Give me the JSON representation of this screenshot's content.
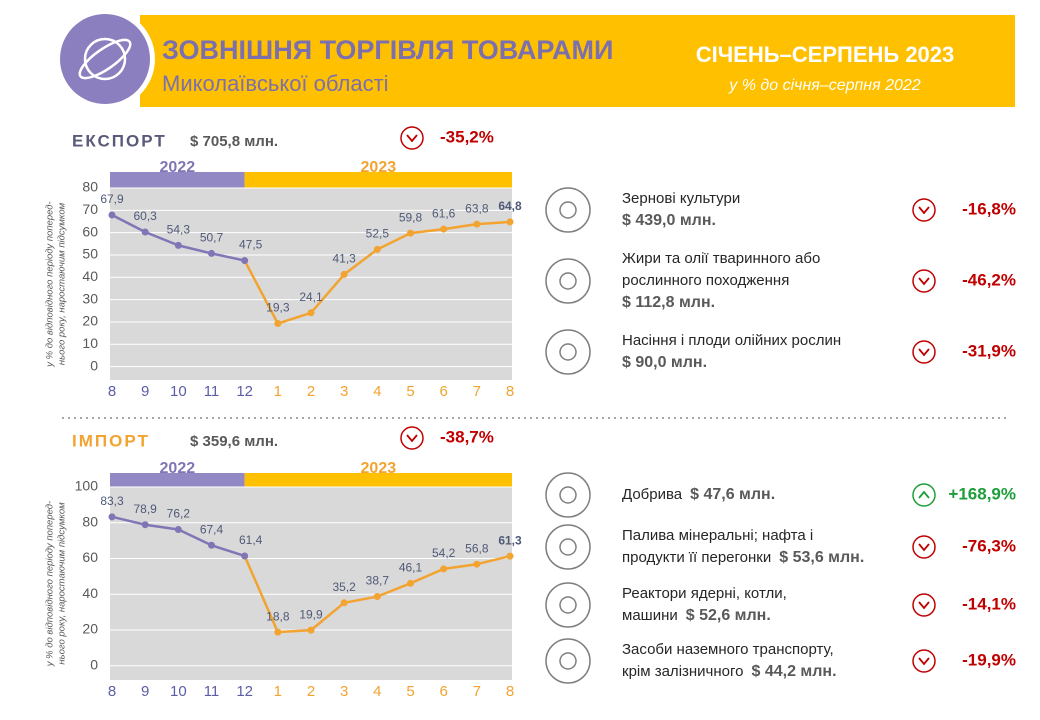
{
  "header": {
    "title": "ЗОВНІШНЯ ТОРГІВЛЯ ТОВАРАМИ",
    "subtitle": "Миколаївської області",
    "period": "СІЧЕНЬ–СЕРПЕНЬ 2023",
    "period_note": "у % до січня–серпня 2022"
  },
  "chart_data": [
    {
      "type": "line",
      "title": "ЕКСПОРТ",
      "title_color": "#595979",
      "total": "$ 705,8 млн.",
      "change": "-35,2%",
      "trend": "down",
      "categories": [
        "8",
        "9",
        "10",
        "11",
        "12",
        "1",
        "2",
        "3",
        "4",
        "5",
        "6",
        "7",
        "8"
      ],
      "values": [
        67.9,
        60.3,
        54.3,
        50.7,
        47.5,
        19.3,
        24.1,
        41.3,
        52.5,
        59.8,
        61.6,
        63.8,
        64.8
      ],
      "value_labels": [
        "67,9",
        "60,3",
        "54,3",
        "50,7",
        "47,5",
        "19,3",
        "24,1",
        "41,3",
        "52,5",
        "59,8",
        "61,6",
        "63,8",
        "64,8"
      ],
      "periods": [
        {
          "label": "2022",
          "count": 5,
          "color": "#8175b6",
          "band_color": "#9188c4"
        },
        {
          "label": "2023",
          "count": 8,
          "color": "#f2a330",
          "band_color": "#ffc000"
        }
      ],
      "ylim": [
        -6,
        80
      ],
      "yticks": [
        0,
        10,
        20,
        30,
        40,
        50,
        60,
        70,
        80
      ],
      "grid": true,
      "ylabel": [
        "у % до відповідного періоду поперед-",
        "нього року, наростаючим підсумком"
      ]
    },
    {
      "type": "line",
      "title": "ІМПОРТ",
      "title_color": "#f2a330",
      "total": "$ 359,6 млн.",
      "change": "-38,7%",
      "trend": "down",
      "categories": [
        "8",
        "9",
        "10",
        "11",
        "12",
        "1",
        "2",
        "3",
        "4",
        "5",
        "6",
        "7",
        "8"
      ],
      "values": [
        83.3,
        78.9,
        76.2,
        67.4,
        61.4,
        18.8,
        19.9,
        35.2,
        38.7,
        46.1,
        54.2,
        56.8,
        61.3
      ],
      "value_labels": [
        "83,3",
        "78,9",
        "76,2",
        "67,4",
        "61,4",
        "18,8",
        "19,9",
        "35,2",
        "38,7",
        "46,1",
        "54,2",
        "56,8",
        "61,3"
      ],
      "periods": [
        {
          "label": "2022",
          "count": 5,
          "color": "#8175b6",
          "band_color": "#9188c4"
        },
        {
          "label": "2023",
          "count": 8,
          "color": "#f2a330",
          "band_color": "#ffc000"
        }
      ],
      "ylim": [
        -8,
        100
      ],
      "yticks": [
        0,
        20,
        40,
        60,
        80,
        100
      ],
      "grid": true,
      "ylabel": [
        "у % до відповідного періоду поперед-",
        "нього року, наростаючим підсумком"
      ]
    }
  ],
  "export_products": [
    {
      "lines": [
        "Зернові культури"
      ],
      "value": "$ 439,0 млн.",
      "change": "-16,8%",
      "trend": "down"
    },
    {
      "lines": [
        "Жири та олії тваринного або",
        "рослинного походження"
      ],
      "value": "$ 112,8 млн.",
      "change": "-46,2%",
      "trend": "down"
    },
    {
      "lines": [
        "Насіння і плоди олійних рослин"
      ],
      "value": "$ 90,0 млн.",
      "change": "-31,9%",
      "trend": "down"
    }
  ],
  "import_products": [
    {
      "lines": [
        "Добрива"
      ],
      "value": "$ 47,6 млн.",
      "change": "+168,9%",
      "trend": "up"
    },
    {
      "lines": [
        "Палива мінеральні; нафта і",
        "продукти її перегонки"
      ],
      "value": "$ 53,6 млн.",
      "change": "-76,3%",
      "trend": "down"
    },
    {
      "lines": [
        "Реактори ядерні, котли,",
        "машини"
      ],
      "value": "$ 52,6 млн.",
      "change": "-14,1%",
      "trend": "down"
    },
    {
      "lines": [
        "Засоби наземного транспорту,",
        "крім залізничного"
      ],
      "value": "$ 44,2 млн.",
      "change": "-19,9%",
      "trend": "down"
    }
  ]
}
